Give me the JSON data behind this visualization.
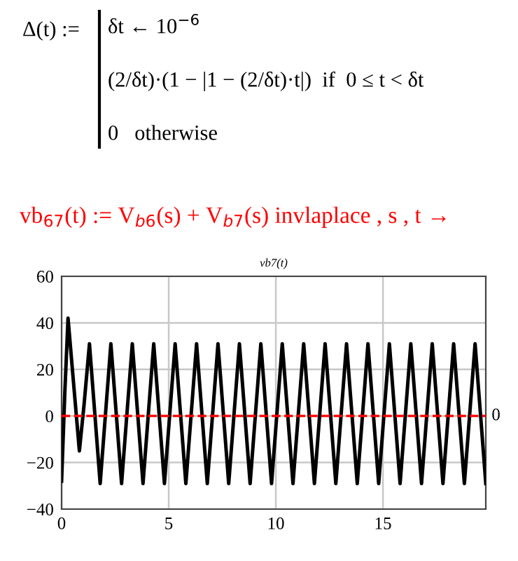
{
  "chart_data": {
    "type": "line",
    "title": "vb7(t)",
    "annotations": [
      "Δ(t) :=",
      "δt ← 10$^{−6}$",
      "(2/δt)·(1 − |1 − (2/δt)·t|)  if  0 ≤ t < δt",
      "0   otherwise",
      "vb$_{67}$(t) := V$_{b6}$(s) + V$_{b7}$(s) invlaplace , s , t →"
    ],
    "series": [
      {
        "color": "#000000",
        "x": [
          0,
          0.15,
          0.3,
          0.55,
          0.83,
          1.05,
          1.3,
          1.55,
          1.8,
          2.05,
          2.3,
          2.55,
          2.8,
          3.05,
          3.3,
          3.55,
          3.8,
          4.05,
          4.3,
          4.55,
          4.8,
          5.05,
          5.3,
          5.55,
          5.8,
          6.05,
          6.3,
          6.55,
          6.8,
          7.05,
          7.3,
          7.55,
          7.8,
          8.05,
          8.3,
          8.55,
          8.8,
          9.05,
          9.3,
          9.55,
          9.8,
          10.05,
          10.3,
          10.55,
          10.8,
          11.05,
          11.3,
          11.55,
          11.8,
          12.05,
          12.3,
          12.55,
          12.8,
          13.05,
          13.3,
          13.55,
          13.8,
          14.05,
          14.3,
          14.55,
          14.8,
          15.05,
          15.3,
          15.55,
          15.8,
          16.05,
          16.3,
          16.55,
          16.8,
          17.05,
          17.3,
          17.55,
          17.8,
          18.05,
          18.3,
          18.55,
          18.8,
          19.05,
          19.3,
          19.55,
          19.8
        ],
        "values": [
          -28,
          10,
          42,
          15,
          -15,
          5,
          31,
          1,
          -29,
          1,
          31,
          1,
          -29,
          1,
          31,
          1,
          -29,
          1,
          31,
          1,
          -29,
          1,
          31,
          1,
          -29,
          1,
          31,
          1,
          -29,
          1,
          31,
          1,
          -29,
          1,
          31,
          1,
          -29,
          1,
          31,
          1,
          -29,
          1,
          31,
          1,
          -29,
          1,
          31,
          1,
          -29,
          1,
          31,
          1,
          -29,
          1,
          31,
          1,
          -29,
          1,
          31,
          1,
          -29,
          1,
          31,
          1,
          -29,
          1,
          31,
          1,
          -29,
          1,
          31,
          1,
          -29,
          1,
          31,
          1,
          -29,
          1,
          31,
          1,
          -29
        ]
      }
    ],
    "xlim": [
      0,
      19.8
    ],
    "xticks": [
      0,
      5,
      10,
      15
    ],
    "ylim": [
      -40,
      60
    ],
    "yticks": [
      -40,
      -20,
      0,
      20,
      40,
      60
    ],
    "grid": true,
    "marker": "none",
    "line_style": "solid",
    "ref_lines": [
      {
        "axis": "y",
        "value": 0,
        "label": "0",
        "color": "#ff0000",
        "line_style": "dashed"
      }
    ]
  }
}
